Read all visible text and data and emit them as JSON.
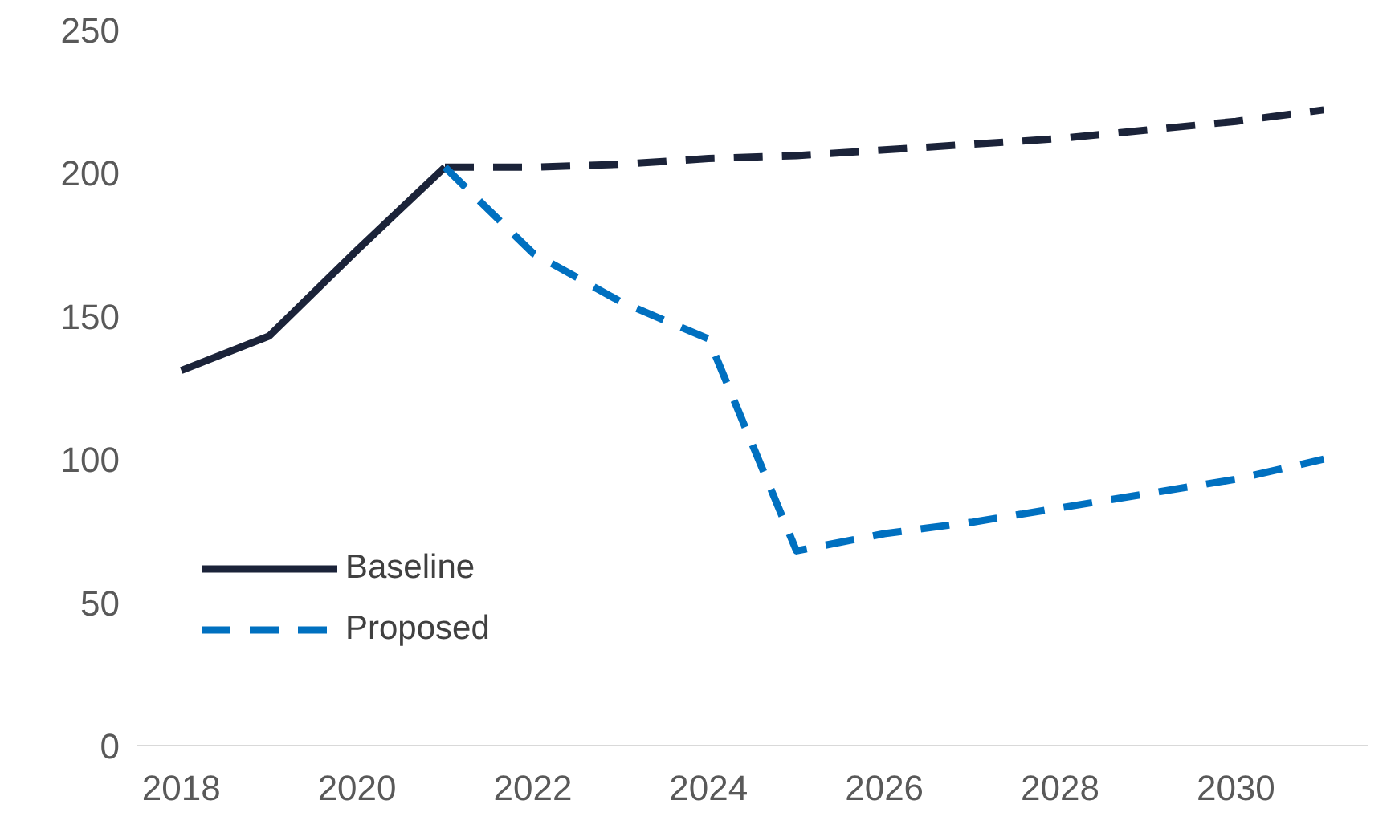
{
  "chart_data": {
    "type": "line",
    "x": [
      2018,
      2019,
      2020,
      2021
    ],
    "series": [
      {
        "name": "Baseline",
        "color": "#1b2339",
        "line_style": "solid",
        "values": [
          131,
          143,
          173,
          202
        ]
      },
      {
        "color": "#1b2339",
        "line_style": "dashed",
        "x": [
          2021,
          2022,
          2023,
          2024,
          2025,
          2026,
          2027,
          2028,
          2029,
          2030,
          2031
        ],
        "values": [
          202,
          202,
          203,
          205,
          206,
          208,
          210,
          212,
          215,
          218,
          222
        ]
      },
      {
        "name": "Proposed",
        "color": "#0070c0",
        "line_style": "dashed",
        "x": [
          2021,
          2022,
          2023,
          2024,
          2025,
          2026,
          2027,
          2028,
          2029,
          2030,
          2031
        ],
        "values": [
          202,
          172,
          155,
          142,
          68,
          74,
          78,
          83,
          88,
          93,
          100
        ]
      }
    ],
    "xlim": [
      2017.5,
      2031.5
    ],
    "xticks": [
      2018,
      2020,
      2022,
      2024,
      2026,
      2028,
      2030
    ],
    "ylim": [
      0,
      250
    ],
    "yticks": [
      0,
      50,
      100,
      150,
      200,
      250
    ],
    "grid": false,
    "legend": "left",
    "marker": "none"
  }
}
